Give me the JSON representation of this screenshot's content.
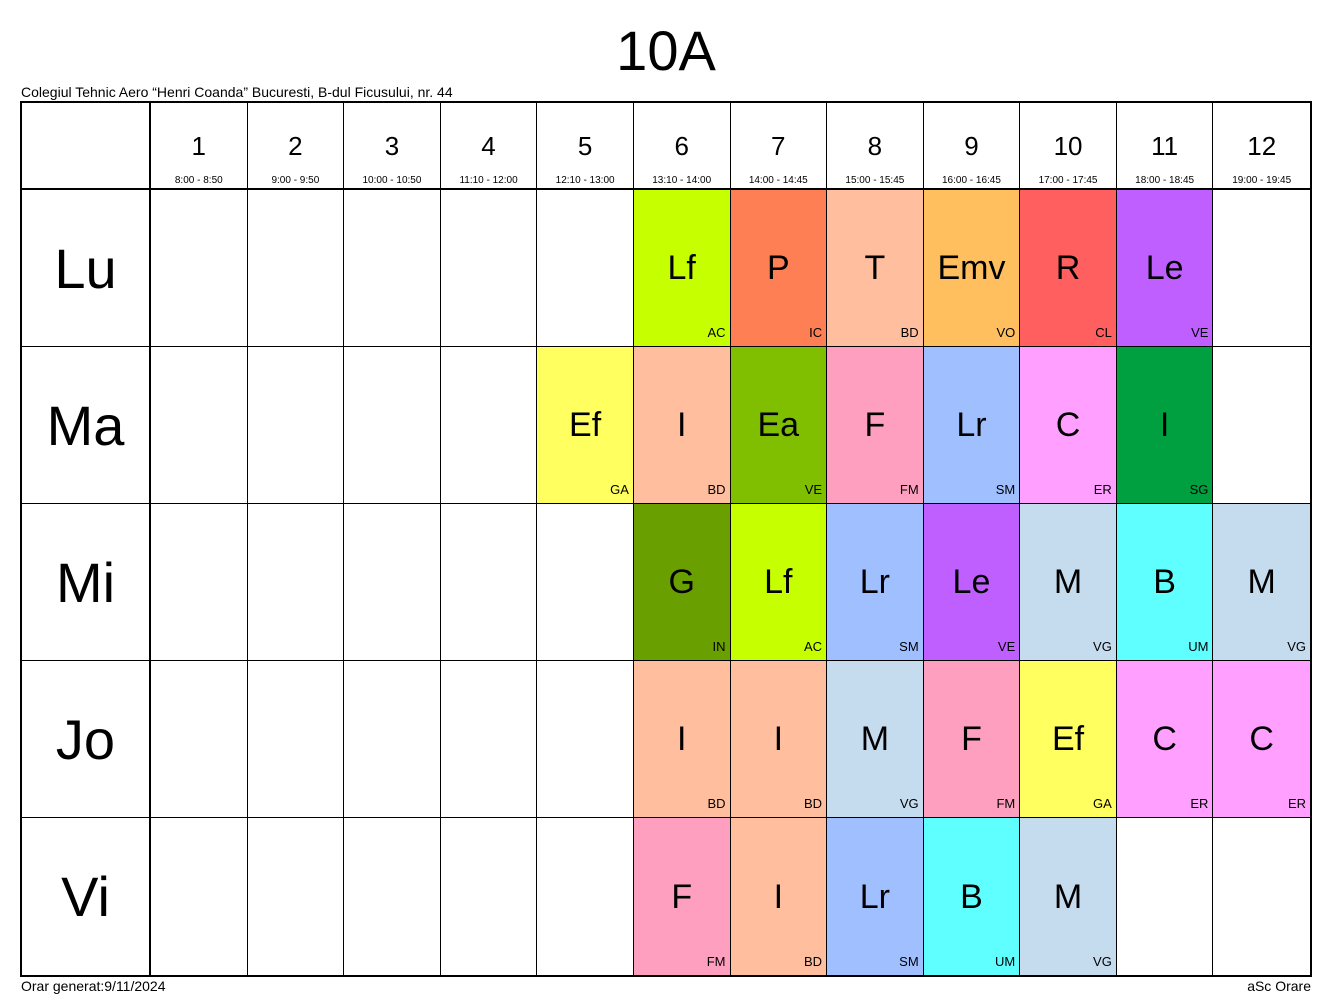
{
  "title": "10A",
  "school": "Colegiul Tehnic Aero “Henri Coanda” Bucuresti, B-dul Ficusului, nr. 44",
  "footer": {
    "generated": "Orar generat:9/11/2024",
    "brand": "aSc Orare"
  },
  "periods": [
    {
      "num": "1",
      "time": "8:00 - 8:50"
    },
    {
      "num": "2",
      "time": "9:00 - 9:50"
    },
    {
      "num": "3",
      "time": "10:00 - 10:50"
    },
    {
      "num": "4",
      "time": "11:10 - 12:00"
    },
    {
      "num": "5",
      "time": "12:10 - 13:00"
    },
    {
      "num": "6",
      "time": "13:10 - 14:00"
    },
    {
      "num": "7",
      "time": "14:00 - 14:45"
    },
    {
      "num": "8",
      "time": "15:00 - 15:45"
    },
    {
      "num": "9",
      "time": "16:00 - 16:45"
    },
    {
      "num": "10",
      "time": "17:00 - 17:45"
    },
    {
      "num": "11",
      "time": "18:00 - 18:45"
    },
    {
      "num": "12",
      "time": "19:00 - 19:45"
    }
  ],
  "days": [
    {
      "label": "Lu",
      "cells": [
        null,
        null,
        null,
        null,
        null,
        {
          "subject": "Lf",
          "teacher": "AC",
          "color": "#C6FF00"
        },
        {
          "subject": "P",
          "teacher": "IC",
          "color": "#FF7F55"
        },
        {
          "subject": "T",
          "teacher": "BD",
          "color": "#FFBF9F"
        },
        {
          "subject": "Emv",
          "teacher": "VO",
          "color": "#FFBF5F"
        },
        {
          "subject": "R",
          "teacher": "CL",
          "color": "#FF5F5F"
        },
        {
          "subject": "Le",
          "teacher": "VE",
          "color": "#BF5FFF"
        },
        null
      ]
    },
    {
      "label": "Ma",
      "cells": [
        null,
        null,
        null,
        null,
        {
          "subject": "Ef",
          "teacher": "GA",
          "color": "#FFFF5F"
        },
        {
          "subject": "I",
          "teacher": "BD",
          "color": "#FFBF9F"
        },
        {
          "subject": "Ea",
          "teacher": "VE",
          "color": "#7FBF00"
        },
        {
          "subject": "F",
          "teacher": "FM",
          "color": "#FF9FBF"
        },
        {
          "subject": "Lr",
          "teacher": "SM",
          "color": "#9FBFFF"
        },
        {
          "subject": "C",
          "teacher": "ER",
          "color": "#FF9FFF"
        },
        {
          "subject": "I",
          "teacher": "SG",
          "color": "#009F3F"
        },
        null
      ]
    },
    {
      "label": "Mi",
      "cells": [
        null,
        null,
        null,
        null,
        null,
        {
          "subject": "G",
          "teacher": "IN",
          "color": "#6A9F00"
        },
        {
          "subject": "Lf",
          "teacher": "AC",
          "color": "#C6FF00"
        },
        {
          "subject": "Lr",
          "teacher": "SM",
          "color": "#9FBFFF"
        },
        {
          "subject": "Le",
          "teacher": "VE",
          "color": "#BF5FFF"
        },
        {
          "subject": "M",
          "teacher": "VG",
          "color": "#C5DCEF"
        },
        {
          "subject": "B",
          "teacher": "UM",
          "color": "#5FFFFF"
        },
        {
          "subject": "M",
          "teacher": "VG",
          "color": "#C5DCEF"
        }
      ]
    },
    {
      "label": "Jo",
      "cells": [
        null,
        null,
        null,
        null,
        null,
        {
          "subject": "I",
          "teacher": "BD",
          "color": "#FFBF9F"
        },
        {
          "subject": "I",
          "teacher": "BD",
          "color": "#FFBF9F"
        },
        {
          "subject": "M",
          "teacher": "VG",
          "color": "#C5DCEF"
        },
        {
          "subject": "F",
          "teacher": "FM",
          "color": "#FF9FBF"
        },
        {
          "subject": "Ef",
          "teacher": "GA",
          "color": "#FFFF5F"
        },
        {
          "subject": "C",
          "teacher": "ER",
          "color": "#FF9FFF"
        },
        {
          "subject": "C",
          "teacher": "ER",
          "color": "#FF9FFF"
        }
      ]
    },
    {
      "label": "Vi",
      "cells": [
        null,
        null,
        null,
        null,
        null,
        {
          "subject": "F",
          "teacher": "FM",
          "color": "#FF9FBF"
        },
        {
          "subject": "I",
          "teacher": "BD",
          "color": "#FFBF9F"
        },
        {
          "subject": "Lr",
          "teacher": "SM",
          "color": "#9FBFFF"
        },
        {
          "subject": "B",
          "teacher": "UM",
          "color": "#5FFFFF"
        },
        {
          "subject": "M",
          "teacher": "VG",
          "color": "#C5DCEF"
        },
        null,
        null
      ]
    }
  ]
}
